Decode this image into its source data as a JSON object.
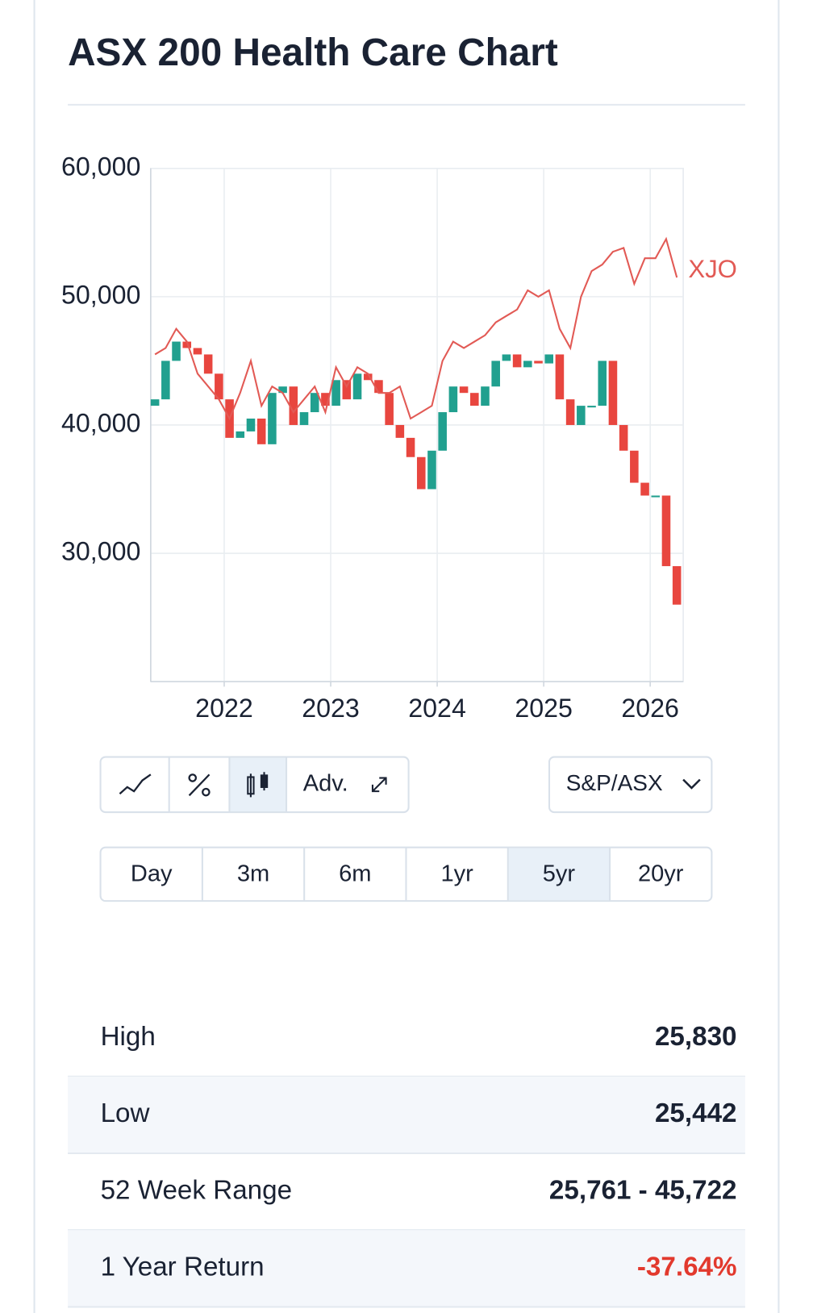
{
  "chart_data": {
    "type": "candlestick",
    "title": "ASX 200 Health Care Chart",
    "x": [
      2021.35,
      2021.45,
      2021.55,
      2021.65,
      2021.75,
      2021.85,
      2021.95,
      2022.05,
      2022.15,
      2022.25,
      2022.35,
      2022.45,
      2022.55,
      2022.65,
      2022.75,
      2022.85,
      2022.95,
      2023.05,
      2023.15,
      2023.25,
      2023.35,
      2023.45,
      2023.55,
      2023.65,
      2023.75,
      2023.85,
      2023.95,
      2024.05,
      2024.15,
      2024.25,
      2024.35,
      2024.45,
      2024.55,
      2024.65,
      2024.75,
      2024.85,
      2024.95,
      2025.05,
      2025.15,
      2025.25,
      2025.35,
      2025.45,
      2025.55,
      2025.65,
      2025.75,
      2025.85,
      2025.95,
      2026.05,
      2026.15,
      2026.25
    ],
    "open": [
      41500,
      42000,
      45000,
      46500,
      46000,
      45500,
      44000,
      42000,
      39000,
      39500,
      40500,
      38500,
      42500,
      43000,
      40000,
      41000,
      42500,
      41500,
      43500,
      42000,
      44000,
      43500,
      42500,
      40000,
      39000,
      37500,
      35000,
      38000,
      41000,
      43000,
      42500,
      41500,
      43000,
      45000,
      45500,
      44500,
      45000,
      44800,
      45500,
      42000,
      40000,
      41500,
      41500,
      45000,
      40000,
      38000,
      35500,
      34500,
      34500,
      29000
    ],
    "close": [
      42000,
      45000,
      46500,
      46000,
      45500,
      44000,
      42000,
      39000,
      39500,
      40500,
      38500,
      42500,
      43000,
      40000,
      41000,
      42500,
      41500,
      43500,
      42000,
      44000,
      43500,
      42500,
      40000,
      39000,
      37500,
      35000,
      38000,
      41000,
      43000,
      42500,
      41500,
      43000,
      45000,
      45500,
      44500,
      45000,
      44800,
      45500,
      42000,
      40000,
      41500,
      41500,
      45000,
      40000,
      38000,
      35500,
      34500,
      34500,
      29000,
      26000
    ],
    "up_color": "#21a08f",
    "down_color": "#e8463f",
    "series": [
      {
        "name": "XJO",
        "color": "#e25a55",
        "values": [
          45500,
          46000,
          47500,
          46500,
          44000,
          43000,
          42000,
          40500,
          42500,
          45000,
          41500,
          43000,
          42500,
          41000,
          42000,
          43000,
          41000,
          44500,
          43000,
          44500,
          44000,
          42500,
          42500,
          43000,
          40500,
          41000,
          41500,
          45000,
          46500,
          46000,
          46500,
          47000,
          48000,
          48500,
          49000,
          50500,
          50000,
          50500,
          47500,
          46000,
          50000,
          52000,
          52500,
          53500,
          53800,
          51000,
          53000,
          53000,
          54500,
          51500
        ]
      }
    ],
    "xlim": [
      2021.31,
      2026.31
    ],
    "xticks": [
      2022,
      2023,
      2024,
      2025,
      2026
    ],
    "ylim": [
      20000,
      60000
    ],
    "yticks": [
      {
        "value": 30000,
        "label": "30,000"
      },
      {
        "value": 40000,
        "label": "40,000"
      },
      {
        "value": 50000,
        "label": "50,000"
      },
      {
        "value": 60000,
        "label": "60,000"
      }
    ],
    "grid": true
  },
  "controls": {
    "advanced": "Adv.",
    "index_select": "S&P/ASX",
    "periods": [
      "Day",
      "3m",
      "6m",
      "1yr",
      "5yr",
      "20yr"
    ],
    "selected_period": 4
  },
  "stats": {
    "rows": [
      [
        "High",
        "25,830"
      ],
      [
        "Low",
        "25,442"
      ],
      [
        "52 Week Range",
        "25,761 - 45,722"
      ],
      [
        "1 Year Return",
        "-37.64%"
      ]
    ]
  }
}
